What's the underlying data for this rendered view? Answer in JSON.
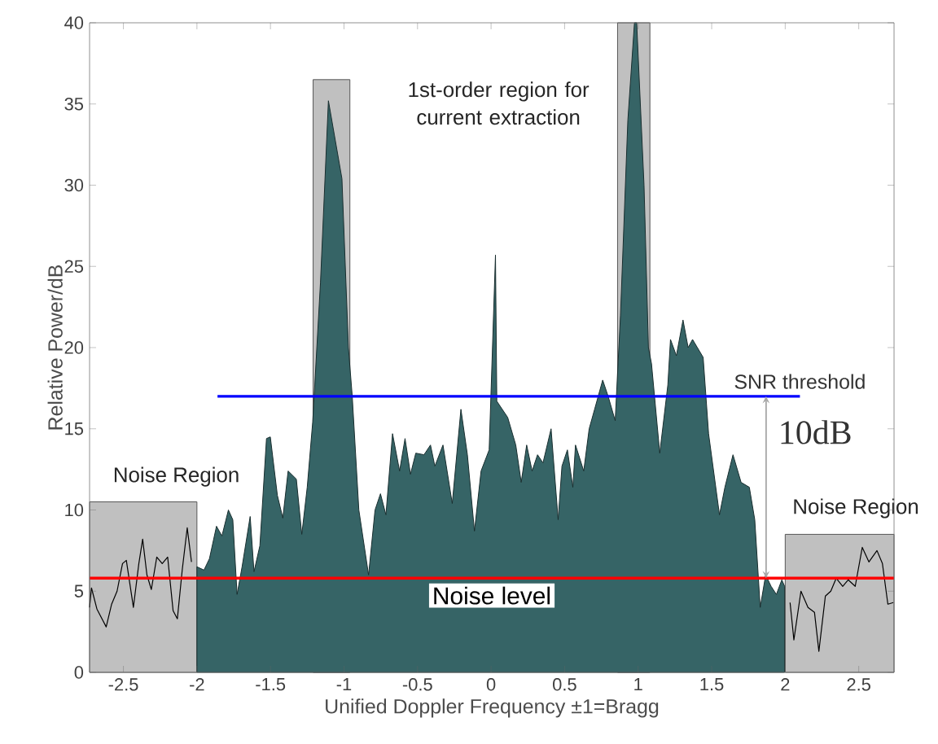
{
  "chart_data": {
    "type": "area",
    "xlabel": "Unified Doppler Frequency   ±1=Bragg",
    "ylabel": "Relative Power/dB",
    "xlim": [
      -2.73,
      2.74
    ],
    "ylim": [
      0,
      40
    ],
    "xticks": [
      -2.5,
      -2,
      -1.5,
      -1,
      -0.5,
      0,
      0.5,
      1,
      1.5,
      2,
      2.5
    ],
    "yticks": [
      0,
      5,
      10,
      15,
      20,
      25,
      30,
      35,
      40
    ],
    "series": [
      {
        "color": "#c0c0c0",
        "x": [
          -2.73,
          -2
        ],
        "values": [
          10.5,
          10.5
        ]
      },
      {
        "color": "#c0c0c0",
        "x": [
          -1.21,
          -0.96
        ],
        "values": [
          36.5,
          36.5
        ]
      },
      {
        "color": "#c0c0c0",
        "x": [
          0.86,
          1.08
        ],
        "values": [
          40,
          40
        ]
      },
      {
        "color": "#c0c0c0",
        "x": [
          2,
          2.74
        ],
        "values": [
          8.5,
          8.5
        ]
      },
      {
        "color": "#366466",
        "x": [
          -2.0,
          -1.952,
          -1.915,
          -1.867,
          -1.83,
          -1.786,
          -1.756,
          -1.727,
          -1.693,
          -1.638,
          -1.612,
          -1.572,
          -1.527,
          -1.501,
          -1.453,
          -1.416,
          -1.38,
          -1.324,
          -1.287,
          -1.25,
          -1.213,
          -1.16,
          -1.106,
          -1.014,
          -0.97,
          -0.944,
          -0.899,
          -0.833,
          -0.789,
          -0.752,
          -0.715,
          -0.67,
          -0.622,
          -0.585,
          -0.548,
          -0.512,
          -0.456,
          -0.412,
          -0.382,
          -0.327,
          -0.264,
          -0.205,
          -0.161,
          -0.113,
          -0.068,
          -0.013,
          0.03,
          0.039,
          0.113,
          0.168,
          0.205,
          0.242,
          0.279,
          0.316,
          0.353,
          0.408,
          0.456,
          0.482,
          0.519,
          0.556,
          0.574,
          0.63,
          0.667,
          0.704,
          0.759,
          0.796,
          0.844,
          0.88,
          0.93,
          0.975,
          0.99,
          1.04,
          1.07,
          1.091,
          1.147,
          1.202,
          1.22,
          1.26,
          1.305,
          1.34,
          1.37,
          1.442,
          1.479,
          1.553,
          1.59,
          1.645,
          1.7,
          1.756,
          1.793,
          1.83,
          1.867,
          1.904,
          1.94,
          1.977,
          1.996
        ],
        "values": [
          6.5,
          6.3,
          7.0,
          9.0,
          8.4,
          10.0,
          9.4,
          4.8,
          6.5,
          9.6,
          6.2,
          7.8,
          14.4,
          14.5,
          10.9,
          9.5,
          12.4,
          11.9,
          8.5,
          11.4,
          15.4,
          24,
          35.2,
          30.4,
          20,
          17,
          10.0,
          6.0,
          10.0,
          11.0,
          9.7,
          14.7,
          12.4,
          14.4,
          12.2,
          13.5,
          13.4,
          14.0,
          12.7,
          14.0,
          10.4,
          16.2,
          13.4,
          8.7,
          12.4,
          13.7,
          25.7,
          16.7,
          15.7,
          14.0,
          11.7,
          14.0,
          12.4,
          13.4,
          12.9,
          15.0,
          9.4,
          12.7,
          13.7,
          11.4,
          14.0,
          12.4,
          15.0,
          16.2,
          18.0,
          17.0,
          15.5,
          22,
          34,
          40,
          40,
          30,
          20,
          19,
          13.5,
          17.7,
          20.5,
          19.5,
          21.7,
          20,
          20.5,
          19.4,
          14.7,
          9.7,
          11.4,
          13.4,
          11.7,
          11.4,
          9.4,
          4.0,
          6.0,
          5.3,
          4.8,
          5.7,
          5.3
        ]
      },
      {
        "type": "line",
        "color": "#000000",
        "x": [
          -2.73,
          -2.717,
          -2.68,
          -2.617,
          -2.58,
          -2.543,
          -2.506,
          -2.48,
          -2.432,
          -2.395,
          -2.369,
          -2.34,
          -2.31,
          -2.273,
          -2.236,
          -2.199,
          -2.162,
          -2.133,
          -2.1,
          -2.066,
          -2.037
        ],
        "values": [
          4.0,
          5.2,
          3.9,
          2.8,
          4.2,
          5.0,
          6.7,
          6.9,
          4.0,
          6.7,
          8.2,
          6.0,
          5.1,
          7.1,
          6.7,
          7.1,
          3.8,
          3.3,
          6.3,
          8.9,
          6.8
        ]
      },
      {
        "type": "line",
        "color": "#000000",
        "x": [
          2.033,
          2.059,
          2.107,
          2.155,
          2.199,
          2.229,
          2.273,
          2.31,
          2.347,
          2.391,
          2.428,
          2.476,
          2.524,
          2.569,
          2.624,
          2.661,
          2.698,
          2.735
        ],
        "values": [
          4.3,
          2.0,
          5.0,
          4.0,
          3.7,
          1.3,
          4.7,
          5.0,
          5.8,
          5.3,
          5.7,
          5.3,
          7.7,
          6.8,
          7.5,
          6.7,
          4.2,
          4.3
        ]
      },
      {
        "type": "line",
        "color": "#0000ff",
        "name": "SNR threshold",
        "x": [
          -1.86,
          2.1
        ],
        "values": [
          17,
          17
        ]
      }
    ],
    "ref_lines": [
      {
        "axis": "y",
        "value": 5.8,
        "label": "Noise level",
        "color": "#ff0000"
      }
    ],
    "annotations": [
      "1st-order region for current extraction",
      "Noise Region",
      "Noise Region",
      {
        "text": "10dB",
        "x": 1.87,
        "y": 17
      }
    ]
  }
}
